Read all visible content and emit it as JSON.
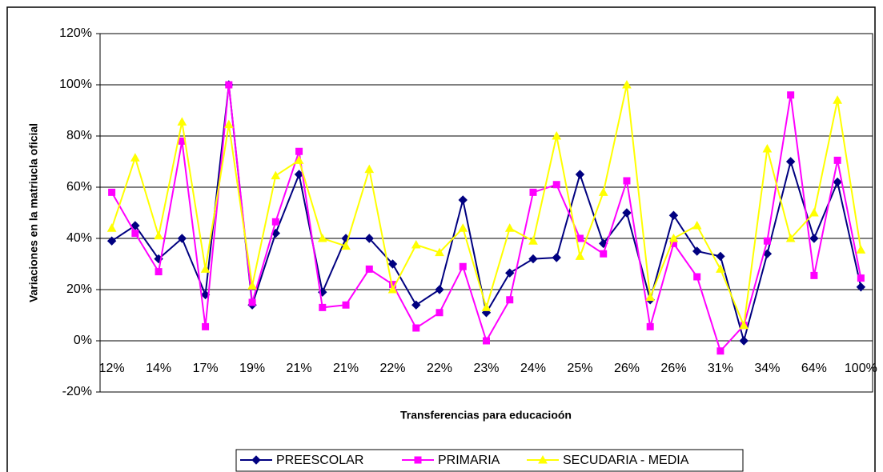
{
  "chart_data": {
    "type": "line",
    "x_label": "Transferencias para educacioón",
    "y_label": "Variaciones en la matriucla oficial",
    "categories": [
      "12%",
      null,
      "14%",
      null,
      "17%",
      null,
      "19%",
      null,
      "21%",
      null,
      "21%",
      null,
      "22%",
      null,
      "22%",
      null,
      "23%",
      null,
      "24%",
      null,
      "25%",
      null,
      "26%",
      null,
      "26%",
      null,
      "31%",
      null,
      "34%",
      null,
      "64%",
      null,
      "100%"
    ],
    "series": [
      {
        "name": "PREESCOLAR",
        "color": "#000080",
        "marker": "diamond",
        "values": [
          39,
          45,
          32,
          40,
          18,
          100,
          14,
          42,
          65,
          19,
          40,
          40,
          30,
          14,
          20,
          55,
          11,
          26.5,
          32,
          32.5,
          65,
          38,
          50,
          16,
          49,
          35,
          33,
          0,
          34,
          70,
          40,
          62,
          21
        ]
      },
      {
        "name": "PRIMARIA",
        "color": "#ff00ff",
        "marker": "square",
        "values": [
          58,
          42,
          27,
          78,
          5.5,
          100,
          15,
          46.5,
          74,
          13,
          14,
          28,
          22,
          5,
          11,
          29,
          0,
          16,
          58,
          61,
          40,
          34,
          62.5,
          5.5,
          38,
          25,
          -4,
          6,
          39,
          96,
          25.5,
          70.5,
          24.5
        ]
      },
      {
        "name": "SECUDARIA - MEDIA",
        "color": "#ffff00",
        "marker": "triangle",
        "values": [
          44,
          71.5,
          41,
          85.5,
          28,
          84.5,
          21.5,
          64.5,
          70.5,
          40,
          37,
          67,
          20,
          37.5,
          34.5,
          44,
          13,
          44,
          39,
          80,
          33,
          58,
          100,
          17,
          40,
          45,
          28,
          6,
          75,
          40,
          50,
          94,
          35.5
        ]
      }
    ],
    "ylim": [
      -20,
      120
    ],
    "yticks": [
      {
        "value": -20,
        "label": "-20%"
      },
      {
        "value": 0,
        "label": "0%"
      },
      {
        "value": 20,
        "label": "20%"
      },
      {
        "value": 40,
        "label": "40%"
      },
      {
        "value": 60,
        "label": "60%"
      },
      {
        "value": 80,
        "label": "80%"
      },
      {
        "value": 100,
        "label": "100%"
      },
      {
        "value": 120,
        "label": "120%"
      }
    ],
    "grid": true,
    "legend": "bottom"
  }
}
